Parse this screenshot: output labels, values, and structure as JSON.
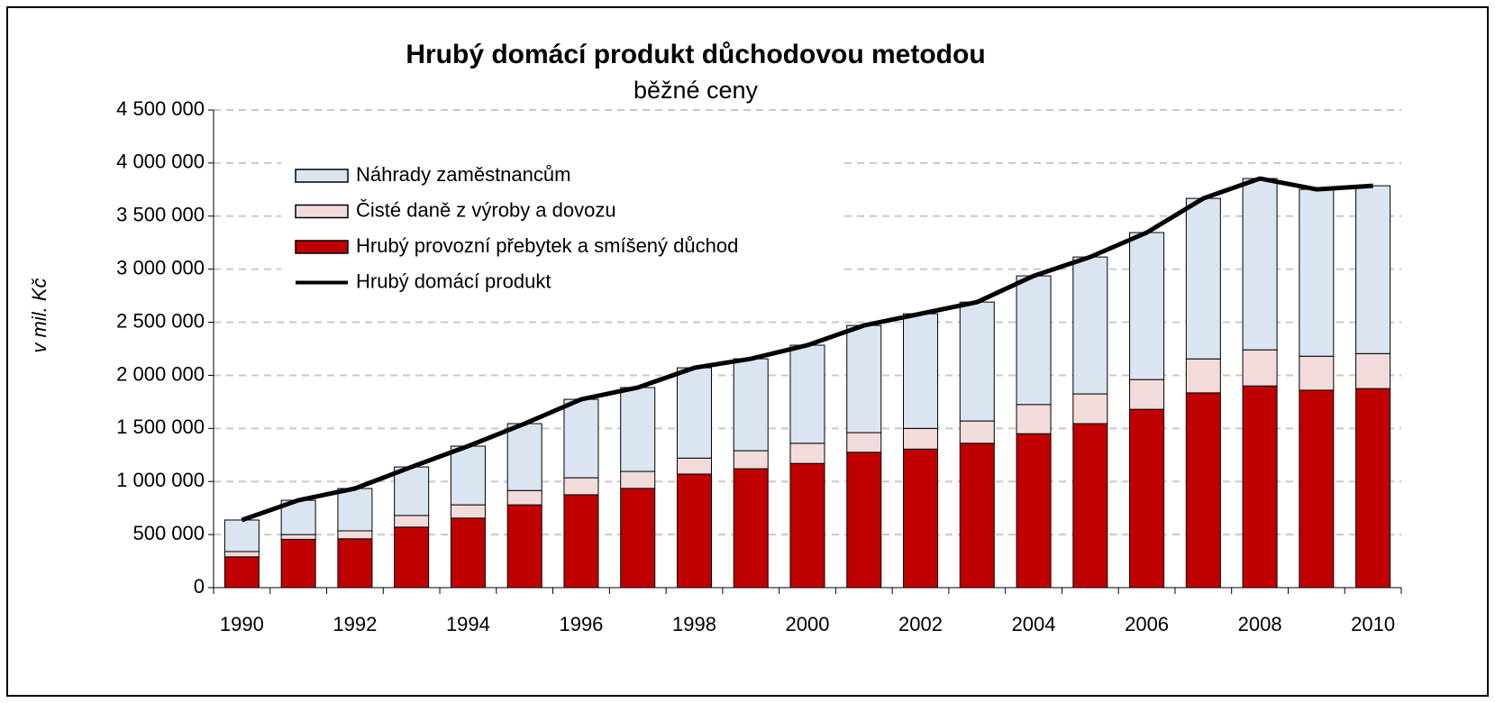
{
  "chart_data": {
    "type": "bar",
    "stacked": true,
    "title": "Hrubý domácí produkt důchodovou metodou",
    "subtitle": "běžné ceny",
    "y_label": "v mil. Kč",
    "categories": [
      "1990",
      null,
      "1992",
      null,
      "1994",
      null,
      "1996",
      null,
      "1998",
      null,
      "2000",
      null,
      "2002",
      null,
      "2004",
      null,
      "2006",
      null,
      "2008",
      null,
      "2010"
    ],
    "series": [
      {
        "name": "Náhrady zaměstnancům",
        "type": "bar",
        "color": "#dbe5f1",
        "values": [
          297000,
          323000,
          399000,
          457000,
          553000,
          630000,
          739000,
          790000,
          851000,
          866000,
          924000,
          1010000,
          1080000,
          1120000,
          1212000,
          1290000,
          1385000,
          1512000,
          1614000,
          1572000,
          1581000
        ]
      },
      {
        "name": "Čisté daně z výroby a dovozu",
        "type": "bar",
        "color": "#f2dcdb",
        "values": [
          50000,
          45000,
          75000,
          110000,
          125000,
          135000,
          160000,
          160000,
          150000,
          170000,
          190000,
          185000,
          195000,
          210000,
          275000,
          280000,
          280000,
          320000,
          340000,
          320000,
          330000
        ]
      },
      {
        "name": "Hrubý provozní přebytek a smíšený důchod",
        "type": "bar",
        "color": "#c00000",
        "values": [
          290000,
          455000,
          460000,
          570000,
          655000,
          780000,
          875000,
          935000,
          1070000,
          1120000,
          1170000,
          1275000,
          1305000,
          1360000,
          1450000,
          1545000,
          1680000,
          1835000,
          1900000,
          1860000,
          1875000
        ]
      },
      {
        "name": "Hrubý domácí produkt",
        "type": "line",
        "color": "#000000",
        "values": [
          637000,
          823000,
          934000,
          1137000,
          1333000,
          1545000,
          1774000,
          1885000,
          2071000,
          2156000,
          2284000,
          2470000,
          2580000,
          2690000,
          2937000,
          3115000,
          3345000,
          3667000,
          3854000,
          3752000,
          3786000
        ]
      }
    ],
    "ylim": [
      0,
      4500000
    ],
    "yticks": [
      0,
      {
        "value": 500000,
        "label": "500 000"
      },
      {
        "value": 1000000,
        "label": "1 000 000"
      },
      {
        "value": 1500000,
        "label": "1 500 000"
      },
      {
        "value": 2000000,
        "label": "2 000 000"
      },
      {
        "value": 2500000,
        "label": "2 500 000"
      },
      {
        "value": 3000000,
        "label": "3 000 000"
      },
      {
        "value": 3500000,
        "label": "3 500 000"
      },
      {
        "value": 4000000,
        "label": "4 000 000"
      },
      {
        "value": 4500000,
        "label": "4 500 000"
      }
    ],
    "grid": true,
    "legend": "top-left"
  }
}
